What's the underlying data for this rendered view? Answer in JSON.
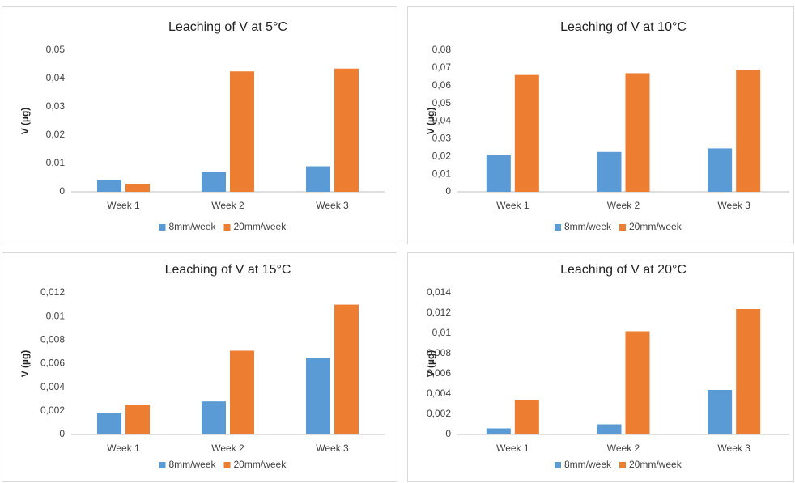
{
  "chart_data": [
    {
      "type": "bar",
      "title": "Leaching of V at 5°C",
      "y_label": "V (µg)",
      "categories": [
        "Week 1",
        "Week 2",
        "Week 3"
      ],
      "series": [
        {
          "name": "8mm/week",
          "color": "#5b9bd5",
          "values": [
            0.0042,
            0.007,
            0.009
          ]
        },
        {
          "name": "20mm/week",
          "color": "#ed7d31",
          "values": [
            0.0028,
            0.0425,
            0.0435
          ]
        }
      ],
      "ylim": [
        0,
        0.05
      ],
      "yticks": [
        0,
        {
          "value": 0.01,
          "label": "0,01"
        },
        {
          "value": 0.02,
          "label": "0,02"
        },
        {
          "value": 0.03,
          "label": "0,03"
        },
        {
          "value": 0.04,
          "label": "0,04"
        },
        {
          "value": 0.05,
          "label": "0,05"
        }
      ]
    },
    {
      "type": "bar",
      "title": "Leaching of V at 10°C",
      "y_label": "V (µg)",
      "categories": [
        "Week 1",
        "Week 2",
        "Week 3"
      ],
      "series": [
        {
          "name": "8mm/week",
          "color": "#5b9bd5",
          "values": [
            0.021,
            0.0225,
            0.0245
          ]
        },
        {
          "name": "20mm/week",
          "color": "#ed7d31",
          "values": [
            0.066,
            0.067,
            0.069
          ]
        }
      ],
      "ylim": [
        0,
        0.08
      ],
      "yticks": [
        0,
        {
          "value": 0.01,
          "label": "0,01"
        },
        {
          "value": 0.02,
          "label": "0,02"
        },
        {
          "value": 0.03,
          "label": "0,03"
        },
        {
          "value": 0.04,
          "label": "0,04"
        },
        {
          "value": 0.05,
          "label": "0,05"
        },
        {
          "value": 0.06,
          "label": "0,06"
        },
        {
          "value": 0.07,
          "label": "0,07"
        },
        {
          "value": 0.08,
          "label": "0,08"
        }
      ]
    },
    {
      "type": "bar",
      "title": "Leaching of V at 15°C",
      "y_label": "V (µg)",
      "categories": [
        "Week 1",
        "Week 2",
        "Week 3"
      ],
      "series": [
        {
          "name": "8mm/week",
          "color": "#5b9bd5",
          "values": [
            0.0018,
            0.0028,
            0.0065
          ]
        },
        {
          "name": "20mm/week",
          "color": "#ed7d31",
          "values": [
            0.0025,
            0.0071,
            0.011
          ]
        }
      ],
      "ylim": [
        0,
        0.012
      ],
      "yticks": [
        0,
        {
          "value": 0.002,
          "label": "0,002"
        },
        {
          "value": 0.004,
          "label": "0,004"
        },
        {
          "value": 0.006,
          "label": "0,006"
        },
        {
          "value": 0.008,
          "label": "0,008"
        },
        {
          "value": 0.01,
          "label": "0,01"
        },
        {
          "value": 0.012,
          "label": "0,012"
        }
      ]
    },
    {
      "type": "bar",
      "title": "Leaching of V at 20°C",
      "y_label": "V (µg)",
      "categories": [
        "Week 1",
        "Week 2",
        "Week 3"
      ],
      "series": [
        {
          "name": "8mm/week",
          "color": "#5b9bd5",
          "values": [
            0.0006,
            0.001,
            0.0044
          ]
        },
        {
          "name": "20mm/week",
          "color": "#ed7d31",
          "values": [
            0.0034,
            0.0102,
            0.0124
          ]
        }
      ],
      "ylim": [
        0,
        0.014
      ],
      "yticks": [
        0,
        {
          "value": 0.002,
          "label": "0,002"
        },
        {
          "value": 0.004,
          "label": "0,004"
        },
        {
          "value": 0.006,
          "label": "0,006"
        },
        {
          "value": 0.008,
          "label": "0,008"
        },
        {
          "value": 0.01,
          "label": "0,01"
        },
        {
          "value": 0.012,
          "label": "0,012"
        },
        {
          "value": 0.014,
          "label": "0,014"
        }
      ]
    }
  ]
}
